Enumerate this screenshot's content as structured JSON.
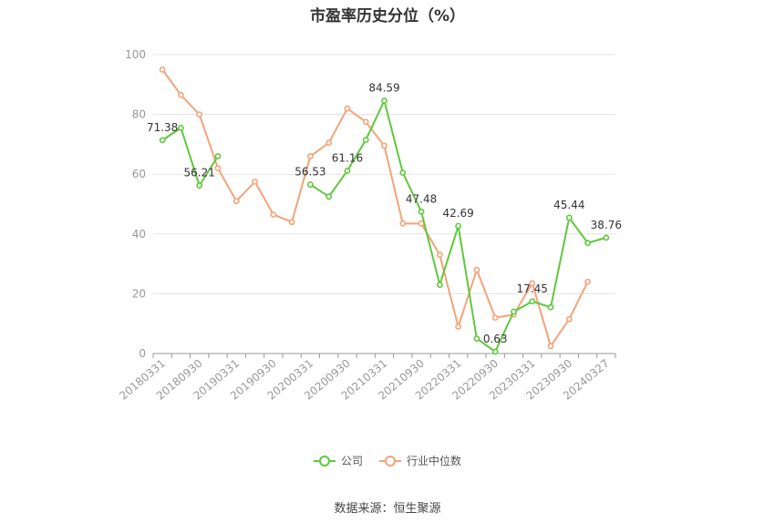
{
  "chart_data": {
    "type": "line",
    "title": "市盈率历史分位（%）",
    "source": "数据来源：恒生聚源",
    "xlabel": "",
    "ylabel": "",
    "ylim": [
      0,
      100
    ],
    "yticks": [
      0,
      20,
      40,
      60,
      80,
      100
    ],
    "grid": true,
    "legend_position": "bottom",
    "x": [
      "20180331",
      "20180630",
      "20180930",
      "20181231",
      "20190331",
      "20190630",
      "20190930",
      "20191231",
      "20200331",
      "20200630",
      "20200930",
      "20201231",
      "20210331",
      "20210630",
      "20210930",
      "20211231",
      "20220331",
      "20220630",
      "20220930",
      "20221231",
      "20230331",
      "20230630",
      "20230930",
      "20231231",
      "20240327"
    ],
    "x_tick_labels": [
      "20180331",
      "20180930",
      "20190331",
      "20190930",
      "20200331",
      "20200930",
      "20210331",
      "20210930",
      "20220331",
      "20220930",
      "20230331",
      "20230930",
      "20240327"
    ],
    "series": [
      {
        "name": "公司",
        "color": "#5fc83c",
        "values": [
          71.38,
          75.5,
          56.21,
          66.0,
          null,
          null,
          null,
          null,
          56.53,
          52.5,
          61.16,
          71.5,
          84.59,
          60.5,
          47.48,
          23.0,
          42.69,
          5.0,
          0.63,
          14.0,
          17.45,
          15.5,
          45.44,
          37.0,
          38.76
        ],
        "labels": {
          "0": "71.38",
          "2": "56.21",
          "8": "56.53",
          "10": "61.16",
          "12": "84.59",
          "14": "47.48",
          "16": "42.69",
          "18": "0.63",
          "20": "17.45",
          "22": "45.44",
          "24": "38.76"
        }
      },
      {
        "name": "行业中位数",
        "color": "#f5a278",
        "values": [
          95.0,
          86.5,
          80.0,
          62.0,
          51.0,
          57.5,
          46.5,
          44.0,
          66.0,
          70.5,
          82.0,
          77.5,
          69.5,
          43.5,
          43.5,
          33.0,
          9.0,
          28.0,
          12.0,
          13.0,
          23.5,
          2.5,
          11.5,
          24.0,
          null
        ],
        "labels": {}
      }
    ]
  }
}
